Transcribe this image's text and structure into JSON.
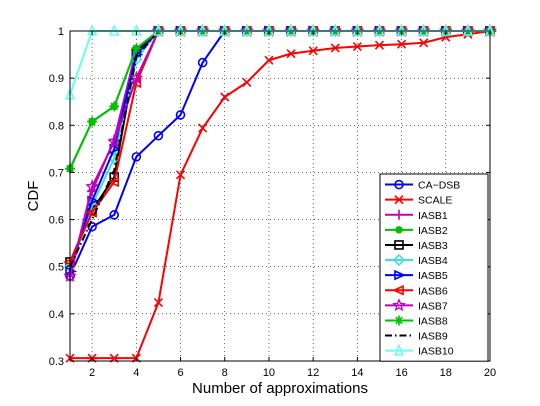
{
  "chart_data": {
    "type": "line",
    "xlabel": "Number of approximations",
    "ylabel": "CDF",
    "xlim": [
      1,
      20
    ],
    "ylim": [
      0.3,
      1
    ],
    "grid": true,
    "legend_position": "bottom-right",
    "x_ticks": [
      2,
      4,
      6,
      8,
      10,
      12,
      14,
      16,
      18,
      20
    ],
    "y_ticks": [
      0.3,
      0.4,
      0.5,
      0.6,
      0.7,
      0.8,
      0.9,
      1
    ],
    "x": [
      1,
      2,
      3,
      4,
      5,
      6,
      7,
      8,
      9,
      10,
      11,
      12,
      13,
      14,
      15,
      16,
      17,
      18,
      19,
      20
    ],
    "series": [
      {
        "name": "CA−DSB",
        "color": "#0000ff",
        "marker": "circle",
        "dash": "solid",
        "values": [
          0.48,
          0.585,
          0.61,
          0.733,
          0.778,
          0.822,
          0.933,
          1,
          1,
          1,
          1,
          1,
          1,
          1,
          1,
          1,
          1,
          1,
          1,
          1
        ]
      },
      {
        "name": "SCALE",
        "color": "#ff0000",
        "marker": "x",
        "dash": "solid",
        "values": [
          0.306,
          0.306,
          0.306,
          0.306,
          0.424,
          0.695,
          0.794,
          0.86,
          0.891,
          0.938,
          0.952,
          0.958,
          0.964,
          0.967,
          0.97,
          0.972,
          0.975,
          0.987,
          0.993,
          1
        ]
      },
      {
        "name": "IASB1",
        "color": "#bf00bf",
        "marker": "plus",
        "dash": "solid",
        "values": [
          0.48,
          0.66,
          0.77,
          0.96,
          1,
          1,
          1,
          1,
          1,
          1,
          1,
          1,
          1,
          1,
          1,
          1,
          1,
          1,
          1,
          1
        ]
      },
      {
        "name": "IASB2",
        "color": "#00c000",
        "marker": "dot",
        "dash": "solid",
        "values": [
          0.708,
          0.808,
          0.84,
          0.963,
          1,
          1,
          1,
          1,
          1,
          1,
          1,
          1,
          1,
          1,
          1,
          1,
          1,
          1,
          1,
          1
        ]
      },
      {
        "name": "IASB3",
        "color": "#000000",
        "marker": "square",
        "dash": "solid",
        "values": [
          0.51,
          0.62,
          0.69,
          0.955,
          1,
          1,
          1,
          1,
          1,
          1,
          1,
          1,
          1,
          1,
          1,
          1,
          1,
          1,
          1,
          1
        ]
      },
      {
        "name": "IASB4",
        "color": "#40e0d0",
        "marker": "diamond",
        "dash": "solid",
        "values": [
          0.5,
          0.63,
          0.73,
          0.94,
          1,
          1,
          1,
          1,
          1,
          1,
          1,
          1,
          1,
          1,
          1,
          1,
          1,
          1,
          1,
          1
        ]
      },
      {
        "name": "IASB5",
        "color": "#0000ff",
        "marker": "triangle-right",
        "dash": "solid",
        "values": [
          0.49,
          0.64,
          0.75,
          0.95,
          1,
          1,
          1,
          1,
          1,
          1,
          1,
          1,
          1,
          1,
          1,
          1,
          1,
          1,
          1,
          1
        ]
      },
      {
        "name": "IASB6",
        "color": "#ff0000",
        "marker": "triangle-left",
        "dash": "solid",
        "values": [
          0.51,
          0.615,
          0.68,
          0.89,
          1,
          1,
          1,
          1,
          1,
          1,
          1,
          1,
          1,
          1,
          1,
          1,
          1,
          1,
          1,
          1
        ]
      },
      {
        "name": "IASB7",
        "color": "#bf00bf",
        "marker": "star",
        "dash": "solid",
        "values": [
          0.48,
          0.67,
          0.765,
          0.9,
          1,
          1,
          1,
          1,
          1,
          1,
          1,
          1,
          1,
          1,
          1,
          1,
          1,
          1,
          1,
          1
        ]
      },
      {
        "name": "IASB8",
        "color": "#00c000",
        "marker": "asterisk",
        "dash": "solid",
        "values": [
          0.708,
          0.808,
          0.84,
          0.963,
          1,
          1,
          1,
          1,
          1,
          1,
          1,
          1,
          1,
          1,
          1,
          1,
          1,
          1,
          1,
          1
        ]
      },
      {
        "name": "IASB9",
        "color": "#000000",
        "marker": "none",
        "dash": "dashdot",
        "values": [
          0.5,
          0.6,
          0.705,
          0.945,
          1,
          1,
          1,
          1,
          1,
          1,
          1,
          1,
          1,
          1,
          1,
          1,
          1,
          1,
          1,
          1
        ]
      },
      {
        "name": "IASB10",
        "color": "#66ffee",
        "marker": "triangle-up",
        "dash": "solid",
        "values": [
          0.865,
          1,
          1,
          1,
          1,
          1,
          1,
          1,
          1,
          1,
          1,
          1,
          1,
          1,
          1,
          1,
          1,
          1,
          1,
          1
        ]
      }
    ]
  }
}
